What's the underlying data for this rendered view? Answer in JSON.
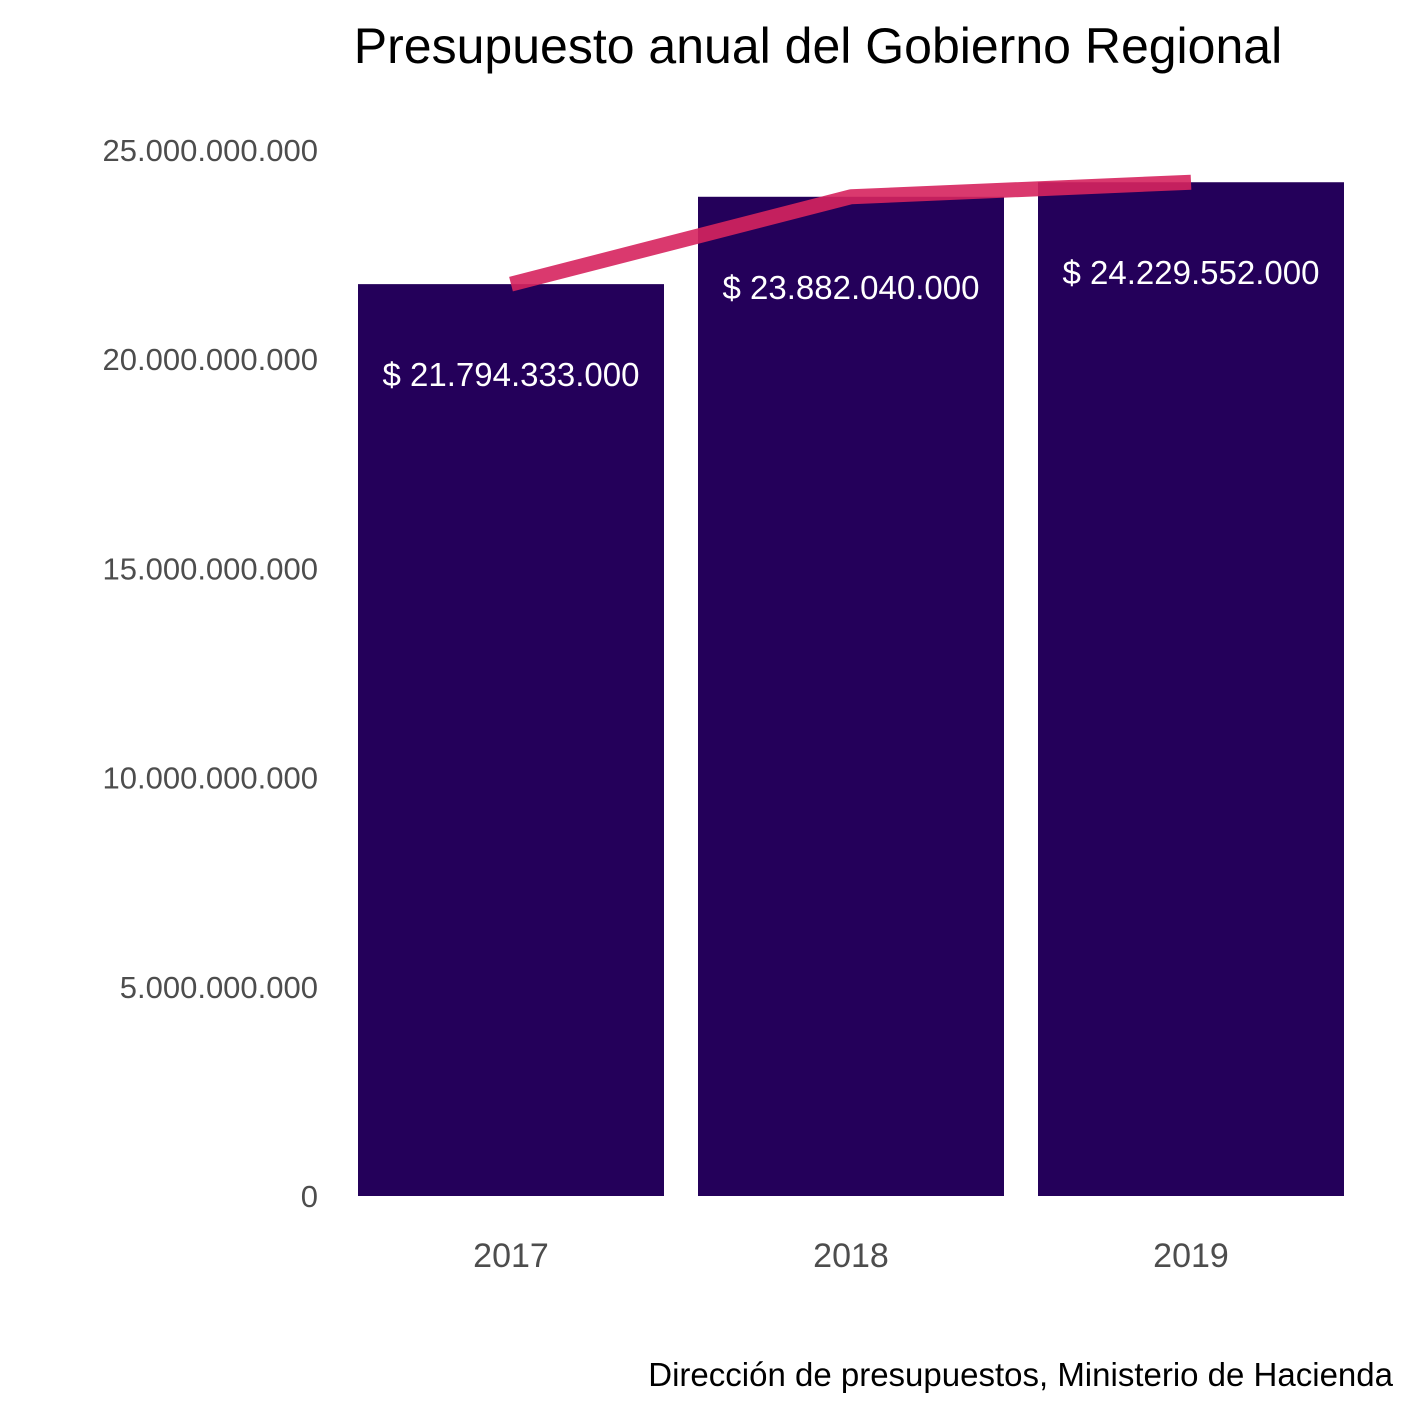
{
  "chart_data": {
    "type": "bar",
    "title": "Presupuesto anual del Gobierno Regional",
    "caption": "Dirección de presupuestos, Ministerio de Hacienda",
    "xlabel": "",
    "ylabel": "",
    "categories": [
      "2017",
      "2018",
      "2019"
    ],
    "values": [
      21794333000,
      23882040000,
      24229552000
    ],
    "value_labels": [
      "$ 21.794.333.000",
      "$ 23.882.040.000",
      "$ 24.229.552.000"
    ],
    "ylim": [
      0,
      25000000000
    ],
    "y_ticks": [
      0,
      5000000000,
      10000000000,
      15000000000,
      20000000000,
      25000000000
    ],
    "y_tick_labels": [
      "0",
      "5.000.000.000",
      "10.000.000.000",
      "15.000.000.000",
      "20.000.000.000",
      "25.000.000.000"
    ],
    "overlay_line": {
      "type": "line",
      "values": [
        21794333000,
        23882040000,
        24229552000
      ]
    },
    "grid": false,
    "legend": "none",
    "colors": {
      "bar": "#24005a",
      "line": "#d6245e",
      "value_label": "#ffffff",
      "tick_label": "#4d4d4d",
      "title": "#000000"
    }
  }
}
